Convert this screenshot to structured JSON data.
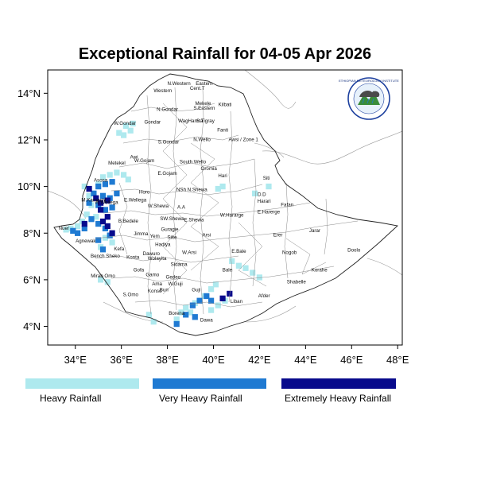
{
  "title": "Exceptional Rainfall for 04-05 Apr 2026",
  "map": {
    "lon_range": [
      32.8,
      48.2
    ],
    "lat_range": [
      3.2,
      15.0
    ],
    "x_ticks": [
      {
        "value": 34,
        "label": "34°E"
      },
      {
        "value": 36,
        "label": "36°E"
      },
      {
        "value": 38,
        "label": "38°E"
      },
      {
        "value": 40,
        "label": "40°E"
      },
      {
        "value": 42,
        "label": "42°E"
      },
      {
        "value": 44,
        "label": "44°E"
      },
      {
        "value": 46,
        "label": "46°E"
      },
      {
        "value": 48,
        "label": "48°E"
      }
    ],
    "y_ticks": [
      {
        "value": 4,
        "label": "4°N"
      },
      {
        "value": 6,
        "label": "6°N"
      },
      {
        "value": 8,
        "label": "8°N"
      },
      {
        "value": 10,
        "label": "10°N"
      },
      {
        "value": 12,
        "label": "12°N"
      },
      {
        "value": 14,
        "label": "14°N"
      }
    ],
    "colors": {
      "heavy": "#aee9ee",
      "very_heavy": "#1f7ad2",
      "extreme": "#080a8c",
      "country_border": "#222222",
      "zone_border": "#8a8a8a",
      "frame": "#000000"
    }
  },
  "regions": [
    {
      "name": "Western",
      "lon": 37.8,
      "lat": 14.05
    },
    {
      "name": "N.Western",
      "lon": 38.5,
      "lat": 14.35
    },
    {
      "name": "Cent.T",
      "lon": 39.3,
      "lat": 14.15
    },
    {
      "name": "Eastern",
      "lon": 39.6,
      "lat": 14.35
    },
    {
      "name": "Mekele",
      "lon": 39.55,
      "lat": 13.5
    },
    {
      "name": "S.Eastern",
      "lon": 39.6,
      "lat": 13.3
    },
    {
      "name": "Kilbati",
      "lon": 40.5,
      "lat": 13.45
    },
    {
      "name": "N.Gondar",
      "lon": 38.0,
      "lat": 13.25
    },
    {
      "name": "Gondar",
      "lon": 37.35,
      "lat": 12.7
    },
    {
      "name": "W.Gondar",
      "lon": 36.15,
      "lat": 12.65
    },
    {
      "name": "WagHamra",
      "lon": 39.0,
      "lat": 12.75
    },
    {
      "name": "S.Tigray",
      "lon": 39.65,
      "lat": 12.75
    },
    {
      "name": "Fanti",
      "lon": 40.4,
      "lat": 12.35
    },
    {
      "name": "Awsi / Zone 1",
      "lon": 41.3,
      "lat": 11.95
    },
    {
      "name": "N.Wello",
      "lon": 39.5,
      "lat": 11.95
    },
    {
      "name": "S.Gondar",
      "lon": 38.05,
      "lat": 11.85
    },
    {
      "name": "Metekel",
      "lon": 35.8,
      "lat": 10.95
    },
    {
      "name": "Awi",
      "lon": 36.55,
      "lat": 11.2
    },
    {
      "name": "W.Gojam",
      "lon": 37.0,
      "lat": 11.05
    },
    {
      "name": "South Wello",
      "lon": 39.1,
      "lat": 11.0
    },
    {
      "name": "Oromia",
      "lon": 39.8,
      "lat": 10.7
    },
    {
      "name": "E.Gojam",
      "lon": 38.0,
      "lat": 10.5
    },
    {
      "name": "Hari",
      "lon": 40.4,
      "lat": 10.4
    },
    {
      "name": "Siti",
      "lon": 42.3,
      "lat": 10.3
    },
    {
      "name": "Asosa",
      "lon": 35.1,
      "lat": 10.2
    },
    {
      "name": "Horo",
      "lon": 37.0,
      "lat": 9.7
    },
    {
      "name": "NSh",
      "lon": 38.6,
      "lat": 9.8
    },
    {
      "name": "N.Shewa",
      "lon": 39.3,
      "lat": 9.8
    },
    {
      "name": "D.D",
      "lon": 42.1,
      "lat": 9.6
    },
    {
      "name": "Harari",
      "lon": 42.2,
      "lat": 9.3
    },
    {
      "name": "M.Kamashi",
      "lon": 34.8,
      "lat": 9.35
    },
    {
      "name": "W.Wellega",
      "lon": 35.35,
      "lat": 9.25
    },
    {
      "name": "E.Wellega",
      "lon": 36.6,
      "lat": 9.35
    },
    {
      "name": "W.Shewa",
      "lon": 37.6,
      "lat": 9.1
    },
    {
      "name": "A.A",
      "lon": 38.6,
      "lat": 9.05
    },
    {
      "name": "E.Harerge",
      "lon": 42.4,
      "lat": 8.85
    },
    {
      "name": "Fafan",
      "lon": 43.2,
      "lat": 9.15
    },
    {
      "name": "W.Hararge",
      "lon": 40.8,
      "lat": 8.7
    },
    {
      "name": "E.Shewa",
      "lon": 39.15,
      "lat": 8.5
    },
    {
      "name": "SW.Shewa",
      "lon": 38.2,
      "lat": 8.55
    },
    {
      "name": "B.Bedele",
      "lon": 36.3,
      "lat": 8.45
    },
    {
      "name": "Guragie",
      "lon": 38.1,
      "lat": 8.1
    },
    {
      "name": "Jarar",
      "lon": 44.4,
      "lat": 8.05
    },
    {
      "name": "Erer",
      "lon": 42.8,
      "lat": 7.85
    },
    {
      "name": "Nuer",
      "lon": 33.5,
      "lat": 8.15
    },
    {
      "name": "Jimma",
      "lon": 36.85,
      "lat": 7.9
    },
    {
      "name": "Yem",
      "lon": 37.45,
      "lat": 7.8
    },
    {
      "name": "Silte",
      "lon": 38.2,
      "lat": 7.75
    },
    {
      "name": "Arsi",
      "lon": 39.7,
      "lat": 7.85
    },
    {
      "name": "Agnewak",
      "lon": 34.45,
      "lat": 7.6
    },
    {
      "name": "Hadiya",
      "lon": 37.8,
      "lat": 7.45
    },
    {
      "name": "Kefa",
      "lon": 35.9,
      "lat": 7.25
    },
    {
      "name": "Dawuro",
      "lon": 37.3,
      "lat": 7.05
    },
    {
      "name": "W.Arsi",
      "lon": 38.95,
      "lat": 7.1
    },
    {
      "name": "Nogob",
      "lon": 43.3,
      "lat": 7.1
    },
    {
      "name": "Doolo",
      "lon": 46.1,
      "lat": 7.2
    },
    {
      "name": "E.Bale",
      "lon": 41.1,
      "lat": 7.15
    },
    {
      "name": "Bench Sheko",
      "lon": 35.3,
      "lat": 6.95
    },
    {
      "name": "Konta",
      "lon": 36.5,
      "lat": 6.9
    },
    {
      "name": "Wolayita",
      "lon": 37.55,
      "lat": 6.85
    },
    {
      "name": "Sidama",
      "lon": 38.5,
      "lat": 6.6
    },
    {
      "name": "Korahe",
      "lon": 44.6,
      "lat": 6.35
    },
    {
      "name": "Gofa",
      "lon": 36.75,
      "lat": 6.35
    },
    {
      "name": "Bale",
      "lon": 40.6,
      "lat": 6.35
    },
    {
      "name": "Mirab Omo",
      "lon": 35.2,
      "lat": 6.1
    },
    {
      "name": "Gamo",
      "lon": 37.35,
      "lat": 6.15
    },
    {
      "name": "Gedeo",
      "lon": 38.25,
      "lat": 6.05
    },
    {
      "name": "Shabelle",
      "lon": 43.6,
      "lat": 5.85
    },
    {
      "name": "Ama",
      "lon": 37.55,
      "lat": 5.75
    },
    {
      "name": "W.Guji",
      "lon": 38.35,
      "lat": 5.75
    },
    {
      "name": "Konso",
      "lon": 37.45,
      "lat": 5.45
    },
    {
      "name": "Buri",
      "lon": 37.85,
      "lat": 5.5
    },
    {
      "name": "S.Omo",
      "lon": 36.4,
      "lat": 5.3
    },
    {
      "name": "Guji",
      "lon": 39.25,
      "lat": 5.5
    },
    {
      "name": "Afder",
      "lon": 42.2,
      "lat": 5.25
    },
    {
      "name": "Liban",
      "lon": 41.0,
      "lat": 5.0
    },
    {
      "name": "Borena",
      "lon": 38.4,
      "lat": 4.5
    },
    {
      "name": "Dawa",
      "lon": 39.7,
      "lat": 4.2
    }
  ],
  "legend": [
    {
      "label": "Heavy Rainfall",
      "color": "#aee9ee"
    },
    {
      "label": "Very Heavy Rainfall",
      "color": "#1f7ad2"
    },
    {
      "label": "Extremely Heavy Rainfall",
      "color": "#080a8c"
    }
  ],
  "logo": {
    "top_text": "ETHIOPIAN METEOROLOGY INSTITUTE"
  },
  "rainfall_cells": {
    "heavy": [
      [
        36.2,
        12.6
      ],
      [
        36.5,
        12.7
      ],
      [
        36.4,
        12.4
      ],
      [
        35.9,
        12.3
      ],
      [
        36.1,
        12.2
      ],
      [
        35.2,
        10.4
      ],
      [
        35.5,
        10.5
      ],
      [
        35.8,
        10.6
      ],
      [
        36.1,
        10.5
      ],
      [
        36.3,
        10.3
      ],
      [
        35.0,
        10.1
      ],
      [
        34.4,
        10.0
      ],
      [
        34.6,
        9.6
      ],
      [
        34.7,
        9.2
      ],
      [
        34.5,
        8.8
      ],
      [
        34.3,
        8.5
      ],
      [
        34.9,
        8.7
      ],
      [
        35.3,
        7.8
      ],
      [
        35.6,
        7.6
      ],
      [
        35.1,
        7.4
      ],
      [
        34.1,
        8.3
      ],
      [
        33.8,
        8.2
      ],
      [
        33.6,
        8.15
      ],
      [
        40.2,
        9.9
      ],
      [
        40.4,
        10.0
      ],
      [
        42.4,
        10.0
      ],
      [
        41.8,
        9.7
      ],
      [
        40.8,
        6.8
      ],
      [
        41.1,
        6.6
      ],
      [
        41.4,
        6.5
      ],
      [
        41.7,
        6.3
      ],
      [
        42.0,
        6.1
      ],
      [
        39.9,
        5.6
      ],
      [
        40.1,
        5.8
      ],
      [
        39.6,
        5.3
      ],
      [
        39.2,
        5.0
      ],
      [
        38.8,
        4.8
      ],
      [
        38.6,
        4.6
      ],
      [
        38.4,
        4.3
      ],
      [
        37.2,
        4.5
      ],
      [
        37.4,
        4.2
      ],
      [
        39.0,
        4.6
      ],
      [
        35.1,
        6.0
      ],
      [
        35.4,
        5.9
      ],
      [
        39.9,
        4.7
      ],
      [
        40.2,
        4.9
      ],
      [
        40.5,
        5.1
      ]
    ],
    "very_heavy": [
      [
        35.0,
        10.0
      ],
      [
        35.3,
        10.1
      ],
      [
        35.6,
        10.2
      ],
      [
        34.8,
        9.7
      ],
      [
        35.2,
        9.6
      ],
      [
        35.5,
        9.5
      ],
      [
        35.8,
        9.7
      ],
      [
        34.6,
        9.3
      ],
      [
        35.0,
        9.2
      ],
      [
        35.3,
        9.0
      ],
      [
        35.6,
        9.1
      ],
      [
        34.7,
        8.6
      ],
      [
        35.0,
        8.4
      ],
      [
        35.3,
        8.2
      ],
      [
        35.5,
        7.9
      ],
      [
        34.4,
        8.2
      ],
      [
        34.1,
        8.0
      ],
      [
        33.9,
        8.1
      ],
      [
        35.0,
        7.7
      ],
      [
        35.2,
        7.3
      ],
      [
        39.1,
        4.9
      ],
      [
        39.4,
        5.1
      ],
      [
        39.7,
        5.3
      ],
      [
        39.9,
        5.1
      ],
      [
        38.8,
        4.5
      ],
      [
        39.2,
        4.4
      ],
      [
        38.4,
        4.1
      ]
    ],
    "extreme": [
      [
        34.6,
        9.9
      ],
      [
        34.9,
        9.5
      ],
      [
        35.1,
        9.3
      ],
      [
        35.4,
        9.4
      ],
      [
        35.1,
        9.0
      ],
      [
        35.4,
        8.7
      ],
      [
        35.2,
        8.5
      ],
      [
        35.4,
        8.3
      ],
      [
        34.4,
        8.4
      ],
      [
        35.6,
        8.0
      ],
      [
        40.4,
        5.2
      ],
      [
        40.7,
        5.4
      ]
    ]
  }
}
